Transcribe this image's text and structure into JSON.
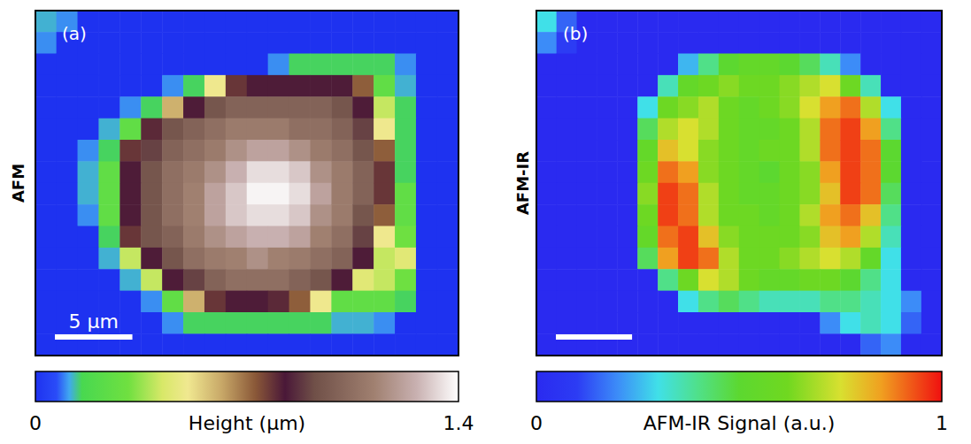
{
  "chart_data": [
    {
      "type": "heatmap",
      "title": "(a)",
      "side_label": "AFM",
      "xlim": [
        0,
        27.3
      ],
      "tick_labels": false,
      "colorbar": {
        "label": "Height (μm)",
        "range": [
          0,
          1.4
        ],
        "ticks": [
          0,
          1.4
        ]
      },
      "scale_bar": {
        "value": 5,
        "label": "5 μm"
      },
      "cells": [
        [
          0.12,
          0.1,
          0,
          0,
          0,
          0,
          0,
          0,
          0,
          0,
          0,
          0,
          0,
          0,
          0,
          0,
          0,
          0,
          0,
          0
        ],
        [
          0.1,
          0,
          0,
          0,
          0,
          0,
          0,
          0,
          0,
          0,
          0,
          0,
          0,
          0,
          0,
          0,
          0,
          0,
          0,
          0
        ],
        [
          0,
          0,
          0,
          0,
          0,
          0,
          0,
          0,
          0,
          0,
          0,
          0.1,
          0.15,
          0.15,
          0.15,
          0.15,
          0.15,
          0.1,
          0,
          0
        ],
        [
          0,
          0,
          0,
          0,
          0,
          0,
          0.1,
          0.15,
          0.5,
          0.78,
          0.82,
          0.82,
          0.82,
          0.82,
          0.82,
          0.72,
          0.25,
          0.12,
          0,
          0
        ],
        [
          0,
          0,
          0,
          0,
          0.1,
          0.15,
          0.6,
          0.82,
          0.95,
          1.0,
          1.0,
          1.0,
          1.0,
          1.0,
          0.95,
          0.82,
          0.4,
          0.15,
          0,
          0
        ],
        [
          0,
          0,
          0,
          0.12,
          0.25,
          0.8,
          0.95,
          1.0,
          1.05,
          1.1,
          1.1,
          1.1,
          1.05,
          1.05,
          1.0,
          0.9,
          0.5,
          0.15,
          0,
          0
        ],
        [
          0,
          0,
          0.1,
          0.15,
          0.78,
          0.9,
          1.0,
          1.05,
          1.1,
          1.17,
          1.22,
          1.22,
          1.17,
          1.1,
          1.05,
          0.95,
          0.72,
          0.15,
          0,
          0
        ],
        [
          0,
          0,
          0.12,
          0.25,
          0.82,
          0.95,
          1.05,
          1.1,
          1.17,
          1.26,
          1.34,
          1.34,
          1.3,
          1.17,
          1.1,
          1.0,
          0.78,
          0.15,
          0,
          0
        ],
        [
          0,
          0,
          0.12,
          0.25,
          0.82,
          0.95,
          1.05,
          1.12,
          1.22,
          1.3,
          1.38,
          1.38,
          1.34,
          1.22,
          1.1,
          1.0,
          0.78,
          0.25,
          0,
          0
        ],
        [
          0,
          0,
          0.1,
          0.25,
          0.82,
          0.95,
          1.05,
          1.12,
          1.22,
          1.3,
          1.34,
          1.34,
          1.3,
          1.17,
          1.1,
          0.95,
          0.72,
          0.25,
          0,
          0
        ],
        [
          0,
          0,
          0,
          0.15,
          0.78,
          0.95,
          1.0,
          1.1,
          1.17,
          1.22,
          1.26,
          1.26,
          1.22,
          1.12,
          1.05,
          0.9,
          0.5,
          0.3,
          0,
          0
        ],
        [
          0,
          0,
          0,
          0.12,
          0.4,
          0.82,
          0.95,
          1.05,
          1.1,
          1.12,
          1.17,
          1.12,
          1.1,
          1.05,
          1.0,
          0.82,
          0.4,
          0.45,
          0,
          0
        ],
        [
          0,
          0,
          0,
          0,
          0.12,
          0.4,
          0.82,
          0.9,
          1.0,
          1.05,
          1.05,
          1.05,
          1.0,
          0.95,
          0.82,
          0.45,
          0.4,
          0.3,
          0,
          0
        ],
        [
          0,
          0,
          0,
          0,
          0,
          0.1,
          0.25,
          0.6,
          0.78,
          0.82,
          0.82,
          0.8,
          0.72,
          0.5,
          0.25,
          0.25,
          0.25,
          0.15,
          0,
          0
        ],
        [
          0,
          0,
          0,
          0,
          0,
          0,
          0.1,
          0.15,
          0.15,
          0.15,
          0.15,
          0.15,
          0.15,
          0.15,
          0.12,
          0.12,
          0.1,
          0,
          0,
          0
        ],
        [
          0,
          0,
          0,
          0,
          0,
          0,
          0,
          0,
          0,
          0,
          0,
          0,
          0,
          0,
          0,
          0,
          0,
          0,
          0,
          0
        ]
      ]
    },
    {
      "type": "heatmap",
      "title": "(b)",
      "side_label": "AFM-IR",
      "xlim": [
        0,
        26.6
      ],
      "tick_labels": false,
      "colorbar": {
        "label": "AFM-IR Signal (a.u.)",
        "range": [
          0,
          1
        ],
        "ticks": [
          0,
          1
        ]
      },
      "scale_bar": {
        "value": 5
      },
      "cells": [
        [
          0.3,
          0.15,
          0,
          0,
          0,
          0,
          0,
          0,
          0,
          0,
          0,
          0,
          0,
          0,
          0,
          0,
          0,
          0,
          0,
          0
        ],
        [
          0.2,
          0.1,
          0,
          0,
          0,
          0,
          0,
          0,
          0,
          0,
          0,
          0,
          0,
          0,
          0,
          0,
          0,
          0,
          0,
          0
        ],
        [
          0,
          0,
          0,
          0,
          0,
          0,
          0,
          0.25,
          0.4,
          0.5,
          0.55,
          0.55,
          0.5,
          0.45,
          0.35,
          0.2,
          0,
          0,
          0,
          0
        ],
        [
          0,
          0,
          0,
          0,
          0,
          0,
          0.35,
          0.55,
          0.6,
          0.65,
          0.6,
          0.6,
          0.65,
          0.7,
          0.75,
          0.6,
          0.35,
          0,
          0,
          0
        ],
        [
          0,
          0,
          0,
          0,
          0,
          0.3,
          0.6,
          0.65,
          0.7,
          0.6,
          0.55,
          0.6,
          0.65,
          0.75,
          0.85,
          0.9,
          0.7,
          0.3,
          0,
          0
        ],
        [
          0,
          0,
          0,
          0,
          0,
          0.45,
          0.7,
          0.75,
          0.7,
          0.6,
          0.55,
          0.55,
          0.6,
          0.7,
          0.9,
          0.95,
          0.85,
          0.4,
          0,
          0
        ],
        [
          0,
          0,
          0,
          0,
          0,
          0.55,
          0.8,
          0.75,
          0.65,
          0.6,
          0.55,
          0.6,
          0.6,
          0.7,
          0.9,
          0.95,
          0.9,
          0.5,
          0,
          0
        ],
        [
          0,
          0,
          0,
          0,
          0,
          0.6,
          0.9,
          0.85,
          0.65,
          0.6,
          0.55,
          0.5,
          0.6,
          0.65,
          0.85,
          0.95,
          0.9,
          0.5,
          0,
          0
        ],
        [
          0,
          0,
          0,
          0,
          0,
          0.65,
          0.95,
          0.9,
          0.7,
          0.6,
          0.55,
          0.55,
          0.6,
          0.65,
          0.8,
          0.95,
          0.9,
          0.45,
          0,
          0
        ],
        [
          0,
          0,
          0,
          0,
          0,
          0.6,
          0.95,
          0.9,
          0.7,
          0.6,
          0.6,
          0.55,
          0.6,
          0.7,
          0.85,
          0.9,
          0.8,
          0.4,
          0,
          0
        ],
        [
          0,
          0,
          0,
          0,
          0,
          0.55,
          0.9,
          0.95,
          0.8,
          0.65,
          0.6,
          0.6,
          0.6,
          0.65,
          0.8,
          0.85,
          0.7,
          0.35,
          0,
          0
        ],
        [
          0,
          0,
          0,
          0,
          0,
          0.45,
          0.85,
          0.95,
          0.9,
          0.7,
          0.6,
          0.6,
          0.65,
          0.7,
          0.75,
          0.7,
          0.55,
          0.3,
          0,
          0
        ],
        [
          0,
          0,
          0,
          0,
          0,
          0,
          0.4,
          0.6,
          0.75,
          0.7,
          0.6,
          0.55,
          0.55,
          0.6,
          0.6,
          0.5,
          0.4,
          0.3,
          0,
          0
        ],
        [
          0,
          0,
          0,
          0,
          0,
          0,
          0,
          0.3,
          0.4,
          0.45,
          0.4,
          0.35,
          0.35,
          0.35,
          0.4,
          0.4,
          0.35,
          0.3,
          0.2,
          0
        ],
        [
          0,
          0,
          0,
          0,
          0,
          0,
          0,
          0,
          0,
          0,
          0,
          0,
          0,
          0,
          0.2,
          0.3,
          0.35,
          0.3,
          0.15,
          0
        ],
        [
          0,
          0,
          0,
          0,
          0,
          0,
          0,
          0,
          0,
          0,
          0,
          0,
          0,
          0,
          0,
          0,
          0.15,
          0.2,
          0,
          0
        ]
      ]
    }
  ]
}
